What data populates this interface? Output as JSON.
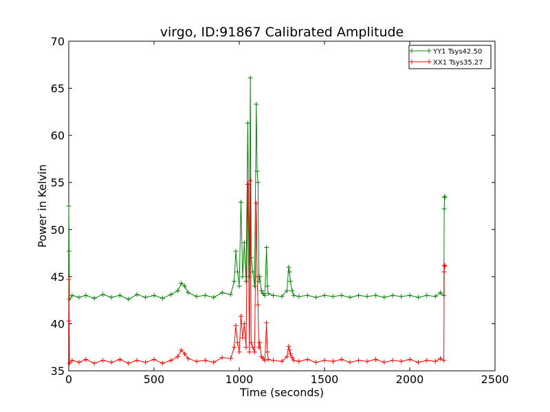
{
  "chart_data": {
    "type": "line",
    "title": "virgo, ID:91867 Calibrated Amplitude",
    "xlabel": "Time (seconds)",
    "ylabel": "Power in Kelvin",
    "xlim": [
      0,
      2500
    ],
    "ylim": [
      35,
      70
    ],
    "xticks": [
      0,
      500,
      1000,
      1500,
      2000,
      2500
    ],
    "yticks": [
      35,
      40,
      45,
      50,
      55,
      60,
      65,
      70
    ],
    "grid": false,
    "legend_position": "top-right",
    "marker": "+",
    "series": [
      {
        "name": "YY1 Tsys42.50",
        "color": "#008000",
        "x": [
          0,
          2,
          4,
          20,
          60,
          100,
          150,
          200,
          250,
          300,
          350,
          400,
          450,
          500,
          550,
          600,
          640,
          660,
          680,
          700,
          750,
          800,
          850,
          900,
          950,
          970,
          980,
          990,
          1000,
          1010,
          1020,
          1030,
          1040,
          1050,
          1060,
          1065,
          1070,
          1080,
          1090,
          1100,
          1105,
          1110,
          1115,
          1120,
          1130,
          1140,
          1150,
          1160,
          1165,
          1170,
          1200,
          1250,
          1280,
          1290,
          1295,
          1300,
          1310,
          1320,
          1350,
          1400,
          1450,
          1500,
          1550,
          1600,
          1650,
          1700,
          1750,
          1800,
          1850,
          1900,
          1950,
          2000,
          2050,
          2100,
          2150,
          2180,
          2200,
          2202,
          2204,
          2206
        ],
        "y": [
          52.5,
          47.7,
          42.6,
          43.0,
          42.8,
          43.0,
          42.7,
          43.1,
          42.8,
          43.0,
          42.6,
          43.1,
          42.8,
          43.0,
          42.7,
          43.1,
          43.5,
          44.3,
          44.0,
          43.3,
          42.9,
          43.0,
          42.8,
          43.3,
          43.1,
          44.5,
          47.7,
          45.5,
          44.0,
          52.9,
          45.0,
          48.6,
          44.5,
          61.3,
          45.0,
          66.1,
          47.0,
          45.5,
          44.0,
          63.3,
          56.2,
          55.0,
          44.5,
          45.0,
          43.5,
          43.2,
          43.0,
          48.1,
          44.0,
          43.2,
          43.0,
          42.9,
          43.5,
          46.0,
          45.5,
          44.5,
          43.5,
          43.0,
          42.9,
          43.0,
          42.8,
          43.0,
          42.9,
          43.0,
          42.8,
          43.0,
          42.9,
          43.0,
          42.8,
          43.0,
          42.9,
          43.0,
          42.8,
          43.0,
          42.9,
          43.3,
          43.0,
          52.2,
          53.5,
          53.4
        ]
      },
      {
        "name": "XX1 Tsys35.27",
        "color": "#ff0000",
        "x": [
          0,
          2,
          4,
          20,
          60,
          100,
          150,
          200,
          250,
          300,
          350,
          400,
          450,
          500,
          550,
          600,
          640,
          660,
          680,
          700,
          750,
          800,
          850,
          900,
          950,
          970,
          980,
          990,
          1000,
          1010,
          1020,
          1030,
          1040,
          1050,
          1060,
          1065,
          1070,
          1080,
          1090,
          1100,
          1105,
          1110,
          1115,
          1120,
          1130,
          1140,
          1150,
          1160,
          1165,
          1170,
          1200,
          1250,
          1280,
          1290,
          1295,
          1300,
          1310,
          1320,
          1350,
          1400,
          1450,
          1500,
          1550,
          1600,
          1650,
          1700,
          1750,
          1800,
          1850,
          1900,
          1950,
          2000,
          2050,
          2100,
          2150,
          2180,
          2200,
          2202,
          2204,
          2206
        ],
        "y": [
          44.7,
          40.3,
          35.8,
          36.1,
          35.9,
          36.2,
          35.8,
          36.1,
          35.9,
          36.2,
          35.8,
          36.1,
          35.9,
          36.2,
          35.8,
          36.1,
          36.5,
          37.2,
          36.8,
          36.3,
          36.0,
          36.1,
          35.9,
          36.4,
          36.3,
          37.5,
          39.8,
          38.0,
          37.0,
          40.8,
          38.5,
          40.0,
          37.5,
          54.8,
          37.0,
          55.2,
          38.0,
          37.5,
          37.0,
          52.8,
          45.0,
          42.0,
          37.5,
          38.0,
          36.5,
          36.3,
          36.1,
          40.1,
          37.0,
          36.2,
          36.1,
          36.0,
          36.5,
          37.6,
          37.2,
          36.8,
          36.4,
          36.1,
          36.0,
          36.2,
          35.9,
          36.1,
          36.0,
          36.2,
          35.9,
          36.1,
          36.0,
          36.2,
          35.9,
          36.1,
          36.0,
          36.2,
          35.9,
          36.1,
          36.0,
          36.3,
          36.1,
          45.5,
          46.2,
          46.1
        ]
      }
    ]
  }
}
